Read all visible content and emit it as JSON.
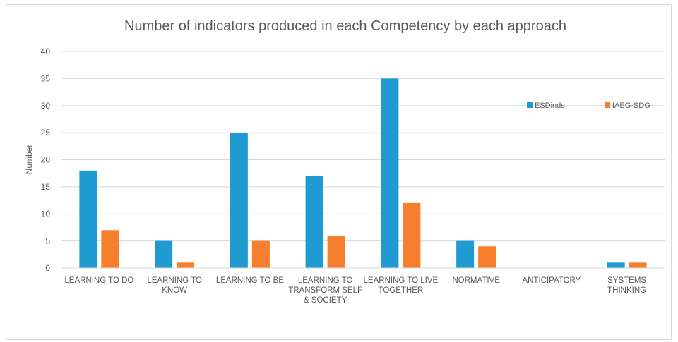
{
  "chart_data": {
    "type": "bar",
    "title": "Number of indicators produced in each Competency by each approach",
    "ylabel": "Number",
    "xlabel": "",
    "ylim": [
      0,
      40
    ],
    "yticks": [
      0,
      5,
      10,
      15,
      20,
      25,
      30,
      35,
      40
    ],
    "grid": true,
    "legend_position": "right",
    "categories": [
      [
        "LEARNING TO DO"
      ],
      [
        "LEARNING TO",
        "KNOW"
      ],
      [
        "LEARNING TO BE"
      ],
      [
        "LEARNING TO",
        "TRANSFORM SELF",
        "& SOCIETY"
      ],
      [
        "LEARNING TO LIVE",
        "TOGETHER"
      ],
      [
        "NORMATIVE"
      ],
      [
        "ANTICIPATORY"
      ],
      [
        "SYSTEMS",
        "THINKING"
      ]
    ],
    "series": [
      {
        "name": "ESDinds",
        "color": "#1f9bd1",
        "values": [
          18,
          5,
          25,
          17,
          35,
          5,
          0,
          1
        ]
      },
      {
        "name": "IAEG-SDG",
        "color": "#f57f2d",
        "values": [
          7,
          1,
          5,
          6,
          12,
          4,
          0,
          1
        ]
      }
    ]
  }
}
